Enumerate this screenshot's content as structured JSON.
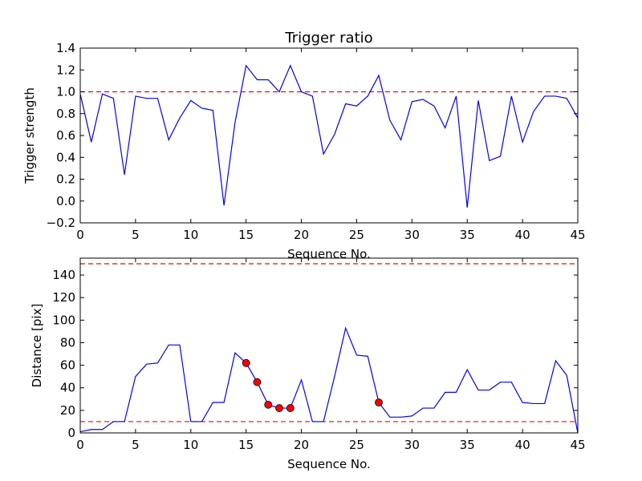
{
  "figure": {
    "background": "#ffffff"
  },
  "chart_data": [
    {
      "type": "line",
      "title": "Trigger ratio",
      "xlabel": "Sequence No.",
      "ylabel": "Trigger strength",
      "xlim": [
        0,
        45
      ],
      "ylim": [
        -0.2,
        1.4
      ],
      "xticks": [
        "0",
        "5",
        "10",
        "15",
        "20",
        "25",
        "30",
        "35",
        "40",
        "45"
      ],
      "yticks": [
        "−0.2",
        "0.0",
        "0.2",
        "0.4",
        "0.6",
        "0.8",
        "1.0",
        "1.2",
        "1.4"
      ],
      "xtick_values": [
        0,
        5,
        10,
        15,
        20,
        25,
        30,
        35,
        40,
        45
      ],
      "ytick_values": [
        -0.2,
        0,
        0.2,
        0.4,
        0.6,
        0.8,
        1.0,
        1.2,
        1.4
      ],
      "grid": false,
      "series": [
        {
          "color": "#0000ff",
          "x": [
            0,
            1,
            2,
            3,
            4,
            5,
            6,
            7,
            8,
            9,
            10,
            11,
            12,
            13,
            14,
            15,
            16,
            17,
            18,
            19,
            20,
            21,
            22,
            23,
            24,
            25,
            26,
            27,
            28,
            29,
            30,
            31,
            32,
            33,
            34,
            35,
            36,
            37,
            38,
            39,
            40,
            41,
            42,
            43,
            44,
            45
          ],
          "values": [
            0.98,
            0.54,
            0.98,
            0.94,
            0.24,
            0.96,
            0.94,
            0.94,
            0.56,
            0.76,
            0.92,
            0.85,
            0.83,
            -0.04,
            0.72,
            1.24,
            1.11,
            1.11,
            1.0,
            1.24,
            1.0,
            0.96,
            0.43,
            0.61,
            0.89,
            0.87,
            0.96,
            1.15,
            0.74,
            0.56,
            0.91,
            0.93,
            0.87,
            0.67,
            0.96,
            -0.06,
            0.92,
            0.37,
            0.41,
            0.96,
            0.54,
            0.82,
            0.96,
            0.96,
            0.94,
            0.76
          ]
        }
      ],
      "reference_lines": [
        {
          "y": 1.0,
          "color": "#ff0000",
          "style": "dashed"
        }
      ]
    },
    {
      "type": "line",
      "title": "",
      "xlabel": "Sequence No.",
      "ylabel": "Distance [pix]",
      "xlim": [
        0,
        45
      ],
      "ylim": [
        0,
        155
      ],
      "xticks": [
        "0",
        "5",
        "10",
        "15",
        "20",
        "25",
        "30",
        "35",
        "40",
        "45"
      ],
      "yticks": [
        "0",
        "20",
        "40",
        "60",
        "80",
        "100",
        "120",
        "140"
      ],
      "xtick_values": [
        0,
        5,
        10,
        15,
        20,
        25,
        30,
        35,
        40,
        45
      ],
      "ytick_values": [
        0,
        20,
        40,
        60,
        80,
        100,
        120,
        140
      ],
      "grid": false,
      "series": [
        {
          "color": "#0000ff",
          "x": [
            0,
            1,
            2,
            3,
            4,
            5,
            6,
            7,
            8,
            9,
            10,
            11,
            12,
            13,
            14,
            15,
            16,
            17,
            18,
            19,
            20,
            21,
            22,
            23,
            24,
            25,
            26,
            27,
            28,
            29,
            30,
            31,
            32,
            33,
            34,
            35,
            36,
            37,
            38,
            39,
            40,
            41,
            42,
            43,
            44,
            45
          ],
          "values": [
            1,
            3,
            3,
            10,
            10,
            50,
            61,
            62,
            78,
            78,
            10,
            10,
            27,
            27,
            71,
            62,
            45,
            25,
            22,
            22,
            47,
            10,
            10,
            50,
            93,
            69,
            68,
            27,
            14,
            14,
            15,
            22,
            22,
            36,
            36,
            56,
            38,
            38,
            45,
            45,
            27,
            26,
            26,
            64,
            51,
            0
          ]
        }
      ],
      "highlighted_points": {
        "color": "#ff0000",
        "x": [
          15,
          16,
          17,
          18,
          19,
          27
        ],
        "y": [
          62,
          45,
          25,
          22,
          22,
          27
        ]
      },
      "reference_lines": [
        {
          "y": 150,
          "color": "#ff0000",
          "style": "dashed"
        },
        {
          "y": 10,
          "color": "#ff0000",
          "style": "dashed"
        }
      ]
    }
  ]
}
